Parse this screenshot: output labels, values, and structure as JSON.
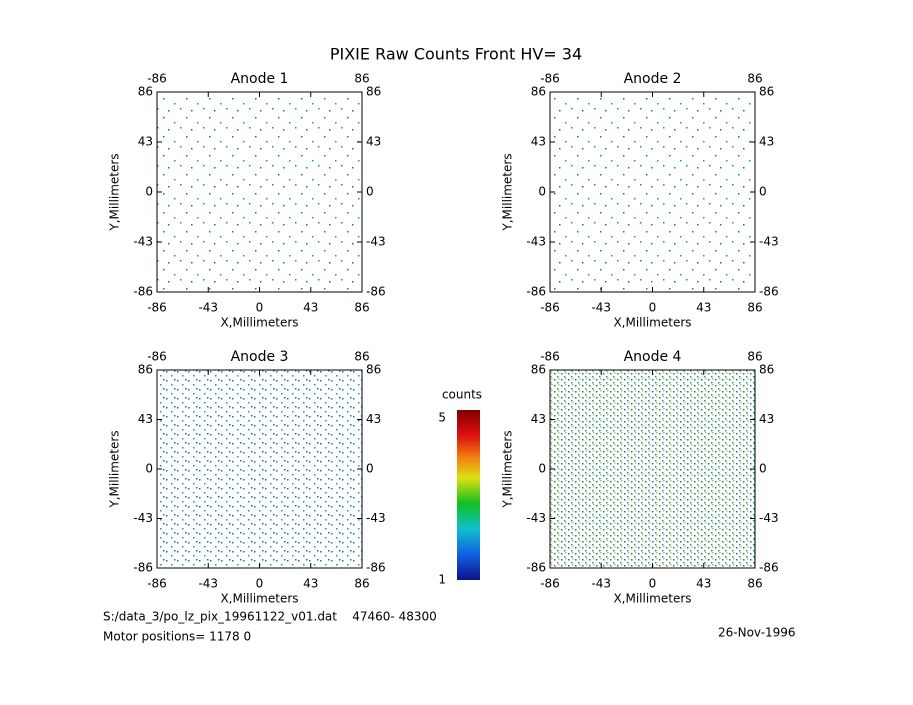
{
  "page_title": "PIXIE Raw Counts Front HV= 34",
  "chart_data": [
    {
      "type": "image",
      "title": "Anode 1",
      "xlabel": "X,Millimeters",
      "ylabel": "Y,Millimeters",
      "xlim": [
        -86,
        86
      ],
      "ylim": [
        -86,
        86
      ],
      "xticks": [
        -86,
        -43,
        0,
        43,
        86
      ],
      "yticks": [
        -86,
        -43,
        0,
        43,
        86
      ]
    },
    {
      "type": "image",
      "title": "Anode 2",
      "xlabel": "X,Millimeters",
      "ylabel": "Y,Millimeters",
      "xlim": [
        -86,
        86
      ],
      "ylim": [
        -86,
        86
      ],
      "xticks": [
        -86,
        -43,
        0,
        43,
        86
      ],
      "yticks": [
        -86,
        -43,
        0,
        43,
        86
      ]
    },
    {
      "type": "image",
      "title": "Anode 3",
      "xlabel": "X,Millimeters",
      "ylabel": "Y,Millimeters",
      "xlim": [
        -86,
        86
      ],
      "ylim": [
        -86,
        86
      ],
      "xticks": [
        -86,
        -43,
        0,
        43,
        86
      ],
      "yticks": [
        -86,
        -43,
        0,
        43,
        86
      ]
    },
    {
      "type": "image",
      "title": "Anode 4",
      "xlabel": "X,Millimeters",
      "ylabel": "Y,Millimeters",
      "xlim": [
        -86,
        86
      ],
      "ylim": [
        -86,
        86
      ],
      "xticks": [
        -86,
        -43,
        0,
        43,
        86
      ],
      "yticks": [
        -86,
        -43,
        0,
        43,
        86
      ]
    }
  ],
  "colorbar": {
    "label": "counts",
    "lim": [
      1,
      5
    ],
    "ticks": [
      1,
      5
    ]
  },
  "footer": {
    "file": "S:/data_3/po_lz_pix_19961122_v01.dat    47460- 48300",
    "motor": "Motor positions= 1178 0",
    "date": "26-Nov-1996"
  }
}
